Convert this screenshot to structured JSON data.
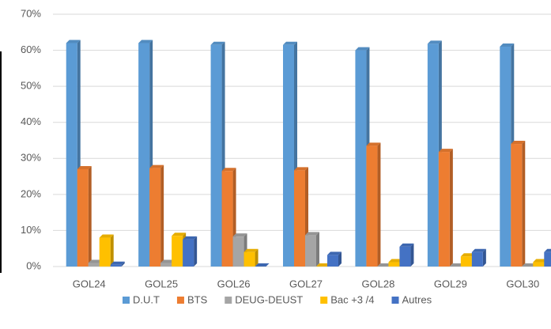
{
  "chart_data": {
    "type": "bar",
    "categories": [
      "GOL24",
      "GOL25",
      "GOL26",
      "GOL27",
      "GOL28",
      "GOL29",
      "GOL30"
    ],
    "series": [
      {
        "name": "D.U.T",
        "color": "#5b9bd5",
        "values": [
          62,
          62,
          61.5,
          61.5,
          60,
          61.8,
          61
        ]
      },
      {
        "name": "BTS",
        "color": "#ed7d31",
        "values": [
          27,
          27.3,
          26.5,
          26.7,
          33.5,
          31.8,
          34
        ]
      },
      {
        "name": "DEUG-DEUST",
        "color": "#a5a5a5",
        "values": [
          1,
          1,
          8.3,
          8.7,
          0,
          0,
          0
        ]
      },
      {
        "name": "Bac +3 /4",
        "color": "#ffc000",
        "values": [
          8,
          8.5,
          4,
          0,
          1.2,
          2.8,
          1.2
        ]
      },
      {
        "name": "Autres",
        "color": "#4472c4",
        "values": [
          0.5,
          7.5,
          0,
          3.2,
          5.5,
          4,
          4
        ]
      }
    ],
    "ylim": [
      0,
      70
    ],
    "yticks": [
      {
        "value": 0,
        "label": "0%"
      },
      {
        "value": 10,
        "label": "10%"
      },
      {
        "value": 20,
        "label": "20%"
      },
      {
        "value": 30,
        "label": "30%"
      },
      {
        "value": 40,
        "label": "40%"
      },
      {
        "value": 50,
        "label": "50%"
      },
      {
        "value": 60,
        "label": "60%"
      },
      {
        "value": 70,
        "label": "70%"
      }
    ],
    "grid": true,
    "legend": "bottom"
  }
}
